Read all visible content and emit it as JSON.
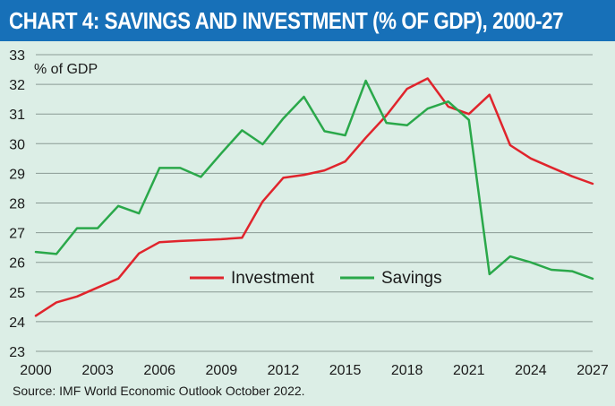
{
  "title": "CHART 4: SAVINGS AND INVESTMENT (% OF GDP), 2000-27",
  "source": "Source: IMF World Economic Outlook October 2022.",
  "colors": {
    "header": "#1770b8",
    "background": "#dceee6",
    "grid": "#8a9a94",
    "investment": "#e0242c",
    "savings": "#2aa84a"
  },
  "chart_data": {
    "type": "line",
    "ylabel": "% of GDP",
    "xlabel": "",
    "ylim": [
      23,
      33
    ],
    "yticks": [
      "23",
      "24",
      "25",
      "26",
      "27",
      "28",
      "29",
      "30",
      "31",
      "32",
      "33"
    ],
    "xlim": [
      2000,
      2027
    ],
    "xticks": [
      "2000",
      "2003",
      "2006",
      "2009",
      "2012",
      "2015",
      "2018",
      "2021",
      "2024",
      "2027"
    ],
    "grid": "horizontal",
    "legend": "center",
    "x": [
      2000,
      2001,
      2002,
      2003,
      2004,
      2005,
      2006,
      2007,
      2008,
      2009,
      2010,
      2011,
      2012,
      2013,
      2014,
      2015,
      2016,
      2017,
      2018,
      2019,
      2020,
      2021,
      2022,
      2023,
      2024,
      2025,
      2026,
      2027
    ],
    "series": [
      {
        "name": "Investment",
        "color": "#e0242c",
        "values": [
          24.2,
          24.65,
          24.85,
          25.15,
          25.45,
          26.3,
          26.68,
          26.72,
          26.75,
          26.78,
          26.83,
          28.05,
          28.85,
          28.95,
          29.1,
          29.4,
          30.2,
          30.95,
          31.85,
          32.2,
          31.25,
          31.0,
          31.65,
          29.95,
          29.5,
          29.2,
          28.9,
          28.65
        ]
      },
      {
        "name": "Savings",
        "color": "#2aa84a",
        "values": [
          26.35,
          26.28,
          27.15,
          27.15,
          27.9,
          27.65,
          29.18,
          29.18,
          28.88,
          29.68,
          30.45,
          29.98,
          30.85,
          31.58,
          30.42,
          30.28,
          32.12,
          30.7,
          30.62,
          31.18,
          31.42,
          30.8,
          25.6,
          26.2,
          26.0,
          25.75,
          25.7,
          25.45
        ]
      }
    ]
  }
}
